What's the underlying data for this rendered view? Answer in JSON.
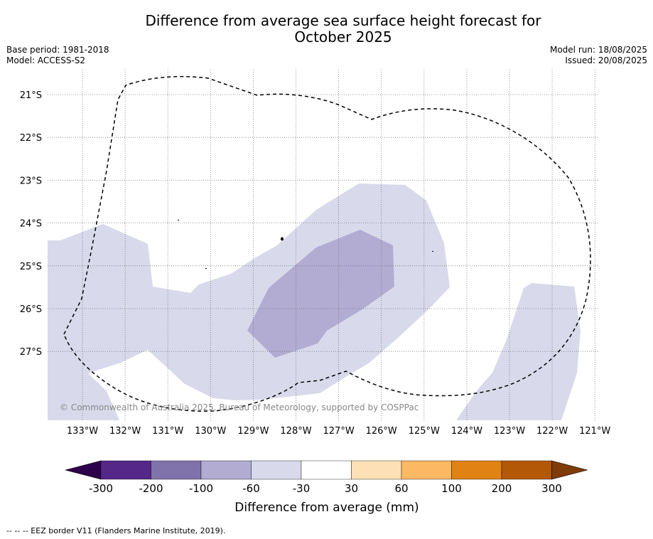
{
  "title_line1": "Difference from average sea surface height forecast for",
  "title_line2": "October 2025",
  "meta": {
    "base_period": "Base period: 1981-2018",
    "model": "Model: ACCESS-S2",
    "model_run": "Model run: 18/08/2025",
    "issued": "Issued: 20/08/2025"
  },
  "map": {
    "lat_labels": [
      "21°S",
      "22°S",
      "23°S",
      "24°S",
      "25°S",
      "26°S",
      "27°S"
    ],
    "lon_labels": [
      "133°W",
      "132°W",
      "131°W",
      "130°W",
      "129°W",
      "128°W",
      "127°W",
      "126°W",
      "125°W",
      "124°W",
      "123°W",
      "122°W",
      "121°W"
    ],
    "copyright": "© Commonwealth of Australia 2025, Bureau of Meteorology, supported by COSPPac"
  },
  "legend": {
    "title": "Difference from average (mm)",
    "tick_labels": [
      "-300",
      "-200",
      "-100",
      "-60",
      "-30",
      "30",
      "60",
      "100",
      "200",
      "300"
    ],
    "colors": [
      "#2d004b",
      "#542788",
      "#8073ac",
      "#b2abd2",
      "#d8daeb",
      "#ffffff",
      "#fee0b6",
      "#fdb863",
      "#e08214",
      "#b35806",
      "#7f3b08"
    ]
  },
  "footnote": "--  --  -- EEZ border V11 (Flanders Marine Institute, 2019)."
}
